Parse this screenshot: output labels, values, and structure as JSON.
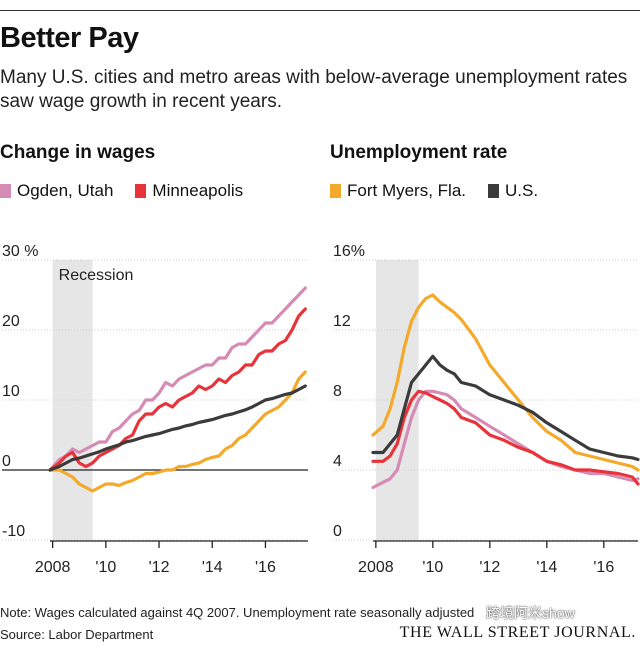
{
  "header": {
    "title": "Better Pay",
    "subtitle": "Many U.S. cities and metro areas with below-average unemployment rates saw wage growth in recent years."
  },
  "footer": {
    "note": "Note: Wages calculated against 4Q 2007. Unemployment rate seasonally adjusted",
    "source": "Source: Labor Department",
    "publisher": "THE WALL STREET JOURNAL.",
    "watermark": "跨境阿米show"
  },
  "chart_data": [
    {
      "type": "line",
      "title": "Change in wages",
      "unit": "%",
      "ylim": [
        -10,
        30
      ],
      "yticks": [
        -10,
        0,
        10,
        20,
        30
      ],
      "ytick_labels": [
        "-10",
        "0",
        "10",
        "20",
        "30 %"
      ],
      "xlim": [
        2007.9,
        2017.6
      ],
      "xticks": [
        2008,
        2010,
        2012,
        2014,
        2016
      ],
      "xtick_labels": [
        "2008",
        "'10",
        "'12",
        "'14",
        "'16"
      ],
      "recession": {
        "label": "Recession",
        "start": 2008.0,
        "end": 2009.5
      },
      "baseline": 0,
      "series": [
        {
          "name": "Ogden, Utah",
          "color": "#d68bb5",
          "x": [
            2007.9,
            2008.25,
            2008.5,
            2008.75,
            2009.0,
            2009.25,
            2009.5,
            2009.75,
            2010.0,
            2010.25,
            2010.5,
            2010.75,
            2011.0,
            2011.25,
            2011.5,
            2011.75,
            2012.0,
            2012.25,
            2012.5,
            2012.75,
            2013.0,
            2013.25,
            2013.5,
            2013.75,
            2014.0,
            2014.25,
            2014.5,
            2014.75,
            2015.0,
            2015.25,
            2015.5,
            2015.75,
            2016.0,
            2016.25,
            2016.5,
            2016.75,
            2017.0,
            2017.25,
            2017.5
          ],
          "y": [
            0,
            1.5,
            2,
            3,
            2.5,
            3,
            3.5,
            4,
            4,
            5.5,
            6,
            7,
            8,
            8.5,
            10,
            10,
            11,
            12.5,
            12,
            13,
            13.5,
            14,
            14.5,
            15,
            15,
            16,
            16,
            17.5,
            18,
            18,
            19,
            20,
            21,
            21,
            22,
            23,
            24,
            25,
            26
          ]
        },
        {
          "name": "Minneapolis",
          "color": "#e8333a",
          "x": [
            2007.9,
            2008.25,
            2008.5,
            2008.75,
            2009.0,
            2009.25,
            2009.5,
            2009.75,
            2010.0,
            2010.25,
            2010.5,
            2010.75,
            2011.0,
            2011.25,
            2011.5,
            2011.75,
            2012.0,
            2012.25,
            2012.5,
            2012.75,
            2013.0,
            2013.25,
            2013.5,
            2013.75,
            2014.0,
            2014.25,
            2014.5,
            2014.75,
            2015.0,
            2015.25,
            2015.5,
            2015.75,
            2016.0,
            2016.25,
            2016.5,
            2016.75,
            2017.0,
            2017.25,
            2017.5
          ],
          "y": [
            0,
            1,
            2,
            2.5,
            1,
            0.5,
            1,
            2,
            2.5,
            3,
            3.5,
            4.5,
            5,
            7,
            8,
            8,
            9,
            9.5,
            9,
            10,
            10.5,
            11,
            12,
            11.5,
            12,
            13,
            12.5,
            13.5,
            14,
            15,
            15,
            16.5,
            17,
            17,
            18,
            18.5,
            20,
            22,
            23
          ]
        },
        {
          "name": "Fort Myers, Fla.",
          "color": "#f4a92a",
          "x": [
            2007.9,
            2008.25,
            2008.5,
            2008.75,
            2009.0,
            2009.25,
            2009.5,
            2009.75,
            2010.0,
            2010.25,
            2010.5,
            2010.75,
            2011.0,
            2011.25,
            2011.5,
            2011.75,
            2012.0,
            2012.25,
            2012.5,
            2012.75,
            2013.0,
            2013.25,
            2013.5,
            2013.75,
            2014.0,
            2014.25,
            2014.5,
            2014.75,
            2015.0,
            2015.25,
            2015.5,
            2015.75,
            2016.0,
            2016.25,
            2016.5,
            2016.75,
            2017.0,
            2017.25,
            2017.5
          ],
          "y": [
            0,
            0,
            -0.5,
            -1,
            -2,
            -2.5,
            -3,
            -2.5,
            -2,
            -2,
            -2.2,
            -1.8,
            -1.5,
            -1,
            -0.5,
            -0.5,
            -0.3,
            0,
            0,
            0.5,
            0.5,
            0.8,
            1,
            1.5,
            1.8,
            2,
            3,
            3.5,
            4.5,
            5,
            6,
            7,
            8,
            8.5,
            9,
            10,
            11,
            13,
            14
          ]
        },
        {
          "name": "U.S.",
          "color": "#3b3b3b",
          "x": [
            2007.9,
            2008.25,
            2008.5,
            2008.75,
            2009.0,
            2009.25,
            2009.5,
            2009.75,
            2010.0,
            2010.25,
            2010.5,
            2010.75,
            2011.0,
            2011.25,
            2011.5,
            2011.75,
            2012.0,
            2012.25,
            2012.5,
            2012.75,
            2013.0,
            2013.25,
            2013.5,
            2013.75,
            2014.0,
            2014.25,
            2014.5,
            2014.75,
            2015.0,
            2015.25,
            2015.5,
            2015.75,
            2016.0,
            2016.25,
            2016.5,
            2016.75,
            2017.0,
            2017.25,
            2017.5
          ],
          "y": [
            0,
            0.5,
            1,
            1.5,
            1.7,
            2,
            2.3,
            2.6,
            3,
            3.3,
            3.6,
            4,
            4.2,
            4.5,
            4.8,
            5,
            5.2,
            5.5,
            5.8,
            6,
            6.3,
            6.5,
            6.8,
            7,
            7.2,
            7.5,
            7.8,
            8,
            8.3,
            8.6,
            9,
            9.5,
            10,
            10.2,
            10.5,
            10.8,
            11,
            11.5,
            12
          ]
        }
      ]
    },
    {
      "type": "line",
      "title": "Unemployment rate",
      "unit": "%",
      "ylim": [
        0,
        16
      ],
      "yticks": [
        0,
        4,
        8,
        12,
        16
      ],
      "ytick_labels": [
        "0",
        "4",
        "8",
        "12",
        "16%"
      ],
      "xlim": [
        2007.9,
        2017.2
      ],
      "xticks": [
        2008,
        2010,
        2012,
        2014,
        2016
      ],
      "xtick_labels": [
        "2008",
        "'10",
        "'12",
        "'14",
        "'16"
      ],
      "recession": {
        "label": "",
        "start": 2008.0,
        "end": 2009.5
      },
      "series": [
        {
          "name": "Ogden, Utah",
          "color": "#d68bb5",
          "x": [
            2007.9,
            2008.25,
            2008.5,
            2008.75,
            2009.0,
            2009.25,
            2009.5,
            2009.75,
            2010.0,
            2010.25,
            2010.5,
            2010.75,
            2011.0,
            2011.5,
            2012.0,
            2012.5,
            2013.0,
            2013.5,
            2014.0,
            2014.5,
            2015.0,
            2015.5,
            2016.0,
            2016.5,
            2017.0,
            2017.2
          ],
          "y": [
            3,
            3.3,
            3.5,
            4,
            5.5,
            7,
            8,
            8.5,
            8.5,
            8.4,
            8.3,
            8,
            7.5,
            7,
            6.5,
            6,
            5.5,
            5,
            4.5,
            4.2,
            4,
            3.8,
            3.8,
            3.6,
            3.4,
            3.5
          ]
        },
        {
          "name": "Minneapolis",
          "color": "#e8333a",
          "x": [
            2007.9,
            2008.25,
            2008.5,
            2008.75,
            2009.0,
            2009.25,
            2009.5,
            2009.75,
            2010.0,
            2010.25,
            2010.5,
            2010.75,
            2011.0,
            2011.5,
            2012.0,
            2012.5,
            2013.0,
            2013.5,
            2014.0,
            2014.5,
            2015.0,
            2015.5,
            2016.0,
            2016.5,
            2017.0,
            2017.2
          ],
          "y": [
            4.5,
            4.5,
            4.8,
            5.5,
            7,
            8,
            8.5,
            8.4,
            8.2,
            8,
            7.8,
            7.5,
            7,
            6.7,
            6,
            5.7,
            5.3,
            5,
            4.5,
            4.3,
            4,
            4,
            3.9,
            3.8,
            3.6,
            3.2
          ]
        },
        {
          "name": "Fort Myers, Fla.",
          "color": "#f4a92a",
          "x": [
            2007.9,
            2008.25,
            2008.5,
            2008.75,
            2009.0,
            2009.25,
            2009.5,
            2009.75,
            2010.0,
            2010.25,
            2010.5,
            2010.75,
            2011.0,
            2011.5,
            2012.0,
            2012.5,
            2013.0,
            2013.5,
            2014.0,
            2014.5,
            2015.0,
            2015.5,
            2016.0,
            2016.5,
            2017.0,
            2017.2
          ],
          "y": [
            6,
            6.5,
            7.5,
            9,
            11,
            12.5,
            13.3,
            13.8,
            14,
            13.6,
            13.3,
            13,
            12.6,
            11.5,
            10,
            9,
            8,
            7,
            6.2,
            5.7,
            5,
            4.8,
            4.6,
            4.4,
            4.2,
            4
          ]
        },
        {
          "name": "U.S.",
          "color": "#3b3b3b",
          "x": [
            2007.9,
            2008.25,
            2008.5,
            2008.75,
            2009.0,
            2009.25,
            2009.5,
            2009.75,
            2010.0,
            2010.25,
            2010.5,
            2010.75,
            2011.0,
            2011.5,
            2012.0,
            2012.5,
            2013.0,
            2013.5,
            2014.0,
            2014.5,
            2015.0,
            2015.5,
            2016.0,
            2016.5,
            2017.0,
            2017.2
          ],
          "y": [
            5,
            5,
            5.5,
            6,
            7.5,
            9,
            9.5,
            10,
            10.5,
            10,
            9.7,
            9.5,
            9,
            8.8,
            8.3,
            8,
            7.7,
            7.3,
            6.7,
            6.2,
            5.7,
            5.2,
            5,
            4.8,
            4.7,
            4.6
          ]
        }
      ]
    }
  ]
}
